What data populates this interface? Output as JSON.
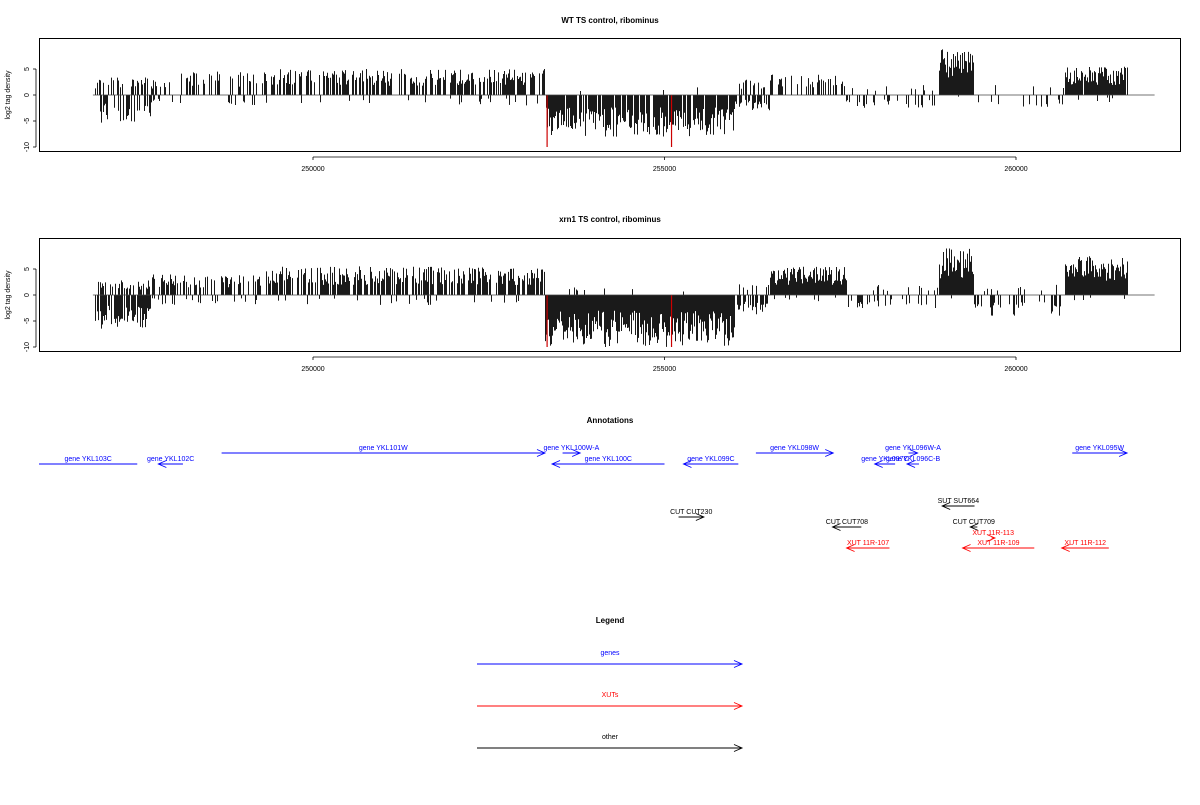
{
  "chart_data": [
    {
      "type": "bar",
      "title": "WT TS control, ribominus",
      "ylabel": "log2 tag density",
      "xlabel": "",
      "ylim": [
        -10,
        10
      ],
      "xlim": [
        246300,
        262300
      ],
      "yticks": [
        -10,
        -5,
        0,
        5
      ],
      "xticks": [
        250000,
        255000,
        260000
      ],
      "grid": false,
      "special_color": "#cc0000",
      "segments": [
        {
          "from": 246900,
          "to": 247700,
          "fwd_dens": 0.45,
          "fwd_max": 3.5,
          "rev_dens": 0.5,
          "rev_max": 5.5
        },
        {
          "from": 247700,
          "to": 248100,
          "fwd_dens": 0.25,
          "fwd_max": 3,
          "rev_dens": 0.2,
          "rev_max": 2
        },
        {
          "from": 248100,
          "to": 249300,
          "fwd_dens": 0.35,
          "fwd_max": 4.5,
          "rev_dens": 0.05,
          "rev_max": 2
        },
        {
          "from": 249300,
          "to": 253300,
          "fwd_dens": 0.6,
          "fwd_max": 5,
          "rev_dens": 0.06,
          "rev_max": 2
        },
        {
          "from": 253300,
          "to": 256000,
          "fwd_dens": 0.03,
          "fwd_max": 1.5,
          "rev_dens": 0.9,
          "rev_max": 8
        },
        {
          "from": 256000,
          "to": 256500,
          "fwd_dens": 0.2,
          "fwd_max": 3,
          "rev_dens": 0.4,
          "rev_max": 3
        },
        {
          "from": 256500,
          "to": 257600,
          "fwd_dens": 0.45,
          "fwd_max": 4,
          "rev_dens": 0.04,
          "rev_max": 1.5
        },
        {
          "from": 257600,
          "to": 258900,
          "fwd_dens": 0.1,
          "fwd_max": 2,
          "rev_dens": 0.15,
          "rev_max": 2.5
        },
        {
          "from": 258900,
          "to": 259400,
          "fwd_dens": 1.0,
          "fwd_max": 9,
          "rev_dens": 0.02,
          "rev_max": 1
        },
        {
          "from": 259400,
          "to": 260700,
          "fwd_dens": 0.06,
          "fwd_max": 2,
          "rev_dens": 0.15,
          "rev_max": 2.5
        },
        {
          "from": 260700,
          "to": 261600,
          "fwd_dens": 0.95,
          "fwd_max": 5.5,
          "rev_dens": 0.04,
          "rev_max": 1.5
        }
      ],
      "special_lines": [
        {
          "x": 253330,
          "y": -10
        },
        {
          "x": 255100,
          "y": -10
        }
      ]
    },
    {
      "type": "bar",
      "title": "xrn1 TS control, ribominus",
      "ylabel": "log2 tag density",
      "xlabel": "",
      "ylim": [
        -10,
        10
      ],
      "xlim": [
        246300,
        262300
      ],
      "yticks": [
        -10,
        -5,
        0,
        5
      ],
      "xticks": [
        250000,
        255000,
        260000
      ],
      "grid": false,
      "special_color": "#cc0000",
      "segments": [
        {
          "from": 246900,
          "to": 247700,
          "fwd_dens": 0.5,
          "fwd_max": 3,
          "rev_dens": 0.75,
          "rev_max": 6.5
        },
        {
          "from": 247700,
          "to": 249300,
          "fwd_dens": 0.45,
          "fwd_max": 4,
          "rev_dens": 0.15,
          "rev_max": 2
        },
        {
          "from": 249300,
          "to": 253300,
          "fwd_dens": 0.7,
          "fwd_max": 5.5,
          "rev_dens": 0.1,
          "rev_max": 2
        },
        {
          "from": 253300,
          "to": 256000,
          "fwd_dens": 0.04,
          "fwd_max": 1.5,
          "rev_dens": 1.0,
          "rev_max": 10
        },
        {
          "from": 256000,
          "to": 256500,
          "fwd_dens": 0.2,
          "fwd_max": 2.5,
          "rev_dens": 0.6,
          "rev_max": 4
        },
        {
          "from": 256500,
          "to": 257600,
          "fwd_dens": 1.0,
          "fwd_max": 5.5,
          "rev_dens": 0.06,
          "rev_max": 1.5
        },
        {
          "from": 257600,
          "to": 258900,
          "fwd_dens": 0.15,
          "fwd_max": 2,
          "rev_dens": 0.25,
          "rev_max": 2.5
        },
        {
          "from": 258900,
          "to": 259400,
          "fwd_dens": 1.0,
          "fwd_max": 9,
          "rev_dens": 0.05,
          "rev_max": 1
        },
        {
          "from": 259400,
          "to": 260700,
          "fwd_dens": 0.1,
          "fwd_max": 2,
          "rev_dens": 0.35,
          "rev_max": 4
        },
        {
          "from": 260700,
          "to": 261600,
          "fwd_dens": 1.0,
          "fwd_max": 7.5,
          "rev_dens": 0.06,
          "rev_max": 1.5
        }
      ],
      "special_lines": [
        {
          "x": 253330,
          "y": -10
        },
        {
          "x": 255100,
          "y": -10
        }
      ]
    }
  ],
  "annotations": {
    "title": "Annotations",
    "features": [
      {
        "label": "gene YKL103C",
        "kind": "gene",
        "strand": "none",
        "start": 246300,
        "end": 247500,
        "row": 2
      },
      {
        "label": "gene YKL102C",
        "kind": "gene",
        "strand": "-",
        "start": 247800,
        "end": 248150,
        "row": 2
      },
      {
        "label": "gene YKL101W",
        "kind": "gene",
        "strand": "+",
        "start": 248700,
        "end": 253300,
        "row": 1
      },
      {
        "label": "gene YKL100W-A",
        "kind": "gene",
        "strand": "+",
        "start": 253550,
        "end": 253800,
        "row": 1
      },
      {
        "label": "gene YKL100C",
        "kind": "gene",
        "strand": "-",
        "start": 253400,
        "end": 255000,
        "row": 2
      },
      {
        "label": "gene YKL099C",
        "kind": "gene",
        "strand": "-",
        "start": 255270,
        "end": 256050,
        "row": 2
      },
      {
        "label": "gene YKL098W",
        "kind": "gene",
        "strand": "+",
        "start": 256300,
        "end": 257400,
        "row": 1
      },
      {
        "label": "gene YKL097C",
        "kind": "gene",
        "strand": "-",
        "start": 257990,
        "end": 258280,
        "row": 2
      },
      {
        "label": "gene YKL096W-A",
        "kind": "gene",
        "strand": "+",
        "start": 258470,
        "end": 258600,
        "row": 1
      },
      {
        "label": "gene YKL096C-B",
        "kind": "gene",
        "strand": "-",
        "start": 258450,
        "end": 258620,
        "row": 2
      },
      {
        "label": "gene YKL095W",
        "kind": "gene",
        "strand": "+",
        "start": 260800,
        "end": 261580,
        "row": 1
      },
      {
        "label": "CUT CUT230",
        "kind": "other",
        "strand": "+",
        "start": 255200,
        "end": 255560,
        "row": 5
      },
      {
        "label": "SUT SUT664",
        "kind": "other",
        "strand": "-",
        "start": 258950,
        "end": 259410,
        "row": 4
      },
      {
        "label": "CUT CUT708",
        "kind": "other",
        "strand": "-",
        "start": 257390,
        "end": 257800,
        "row": 6
      },
      {
        "label": "CUT CUT709",
        "kind": "other",
        "strand": "-",
        "start": 259350,
        "end": 259450,
        "row": 6
      },
      {
        "label": "XUT 11R-113",
        "kind": "xut",
        "strand": "+",
        "start": 259650,
        "end": 259700,
        "row": 7
      },
      {
        "label": "XUT 11R-107",
        "kind": "xut",
        "strand": "-",
        "start": 257590,
        "end": 258200,
        "row": 8
      },
      {
        "label": "XUT 11R-109",
        "kind": "xut",
        "strand": "-",
        "start": 259240,
        "end": 260260,
        "row": 8
      },
      {
        "label": "XUT 11R-112",
        "kind": "xut",
        "strand": "-",
        "start": 260650,
        "end": 261320,
        "row": 8
      }
    ]
  },
  "legend": {
    "title": "Legend",
    "items": [
      {
        "label": "genes",
        "color": "#0000ff"
      },
      {
        "label": "XUTs",
        "color": "#ff0000"
      },
      {
        "label": "other",
        "color": "#000000"
      }
    ]
  },
  "colors": {
    "gene": "#0000ff",
    "xut": "#ff0000",
    "other": "#000000",
    "axis": "#000000"
  }
}
